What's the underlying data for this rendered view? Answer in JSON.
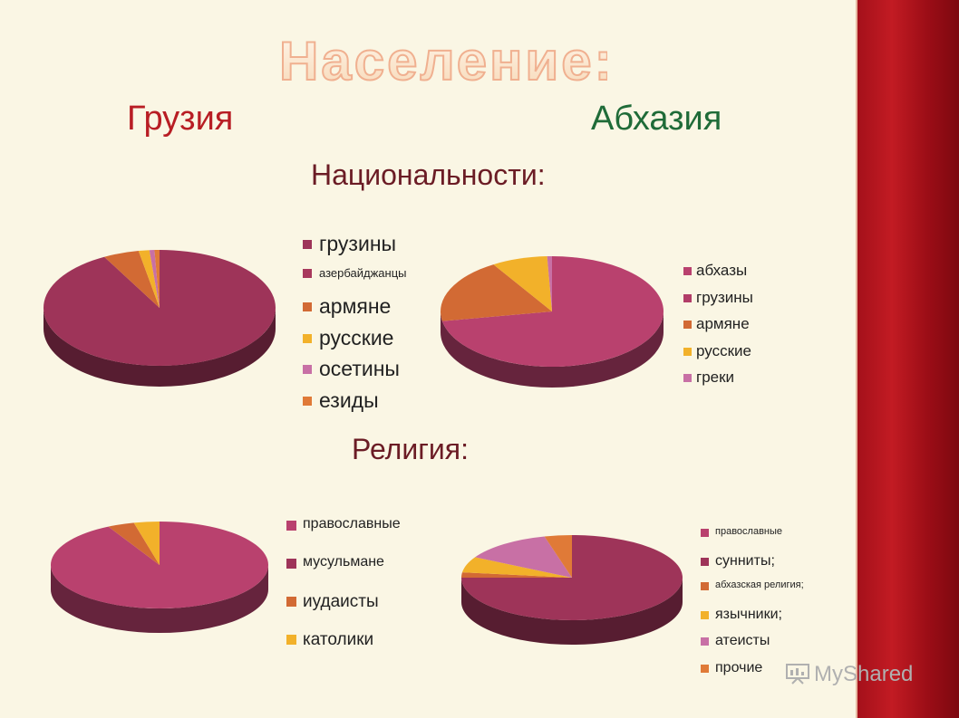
{
  "title": "Население:",
  "headers": {
    "georgia": "Грузия",
    "abkhazia": "Абхазия"
  },
  "sections": {
    "nationalities": "Национальности:",
    "religion": "Религия:"
  },
  "colors": {
    "crimson": "#9e3459",
    "rose": "#b9416e",
    "dark_orange": "#d26a34",
    "orange": "#e07a37",
    "yellow": "#f2b12a",
    "pink": "#c870a5",
    "side_band": "#b3141d"
  },
  "watermark": "MyShared",
  "chart_data": [
    {
      "type": "pie",
      "title": "",
      "categories": [
        "грузины",
        "азербайджанцы",
        "армяне",
        "русские",
        "осетины",
        "езиды"
      ],
      "values": [
        0.921,
        0.0,
        0.05,
        0.015,
        0.007,
        0.007
      ],
      "colors": [
        "#9e3459",
        "#a8395d",
        "#d26a34",
        "#f2b12a",
        "#c870a5",
        "#e07a37"
      ],
      "legend": "right"
    },
    {
      "type": "pie",
      "title": "",
      "categories": [
        "абхазы",
        "грузины",
        "армяне",
        "русские",
        "греки"
      ],
      "values": [
        0.722,
        0.0,
        0.19,
        0.081,
        0.007
      ],
      "colors": [
        "#b9416e",
        "#b23d68",
        "#d26a34",
        "#f2b12a",
        "#c870a5"
      ],
      "legend": "right"
    },
    {
      "type": "pie",
      "title": "",
      "categories": [
        "православные",
        "мусульмане",
        "иудаисты",
        "католики"
      ],
      "values": [
        0.922,
        0.0,
        0.04,
        0.038
      ],
      "colors": [
        "#b9416e",
        "#9e3459",
        "#d26a34",
        "#f2b12a"
      ],
      "legend": "right"
    },
    {
      "type": "pie",
      "title": "",
      "categories": [
        "православные",
        "сунниты;",
        "абхазская религия;",
        "язычники;",
        "атеисты",
        "прочие"
      ],
      "values": [
        0.0,
        0.75,
        0.02,
        0.06,
        0.13,
        0.04
      ],
      "colors": [
        "#b9416e",
        "#9e3459",
        "#d26a34",
        "#f2b12a",
        "#c870a5",
        "#e07a37"
      ],
      "legend": "right"
    }
  ]
}
